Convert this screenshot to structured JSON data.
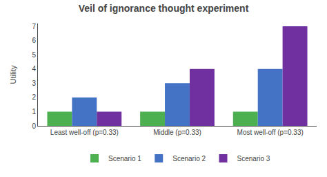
{
  "chart_data": {
    "type": "bar",
    "title": "Veil of ignorance thought experiment",
    "ylabel": "Utility",
    "categories": [
      "Least well-off (p=0.33)",
      "Middle (p=0.33)",
      "Most well-off (p=0.33)"
    ],
    "series": [
      {
        "name": "Scenario 1",
        "color": "#4CAF50",
        "values": [
          1,
          1,
          1
        ]
      },
      {
        "name": "Scenario 2",
        "color": "#4472C4",
        "values": [
          2,
          3,
          4
        ]
      },
      {
        "name": "Scenario 3",
        "color": "#7030A0",
        "values": [
          1,
          4,
          7
        ]
      }
    ],
    "ylim": [
      0,
      7.2
    ],
    "yticks": [
      0,
      1,
      2,
      3,
      4,
      5,
      6,
      7
    ],
    "grid": false,
    "legend": "bottom"
  }
}
